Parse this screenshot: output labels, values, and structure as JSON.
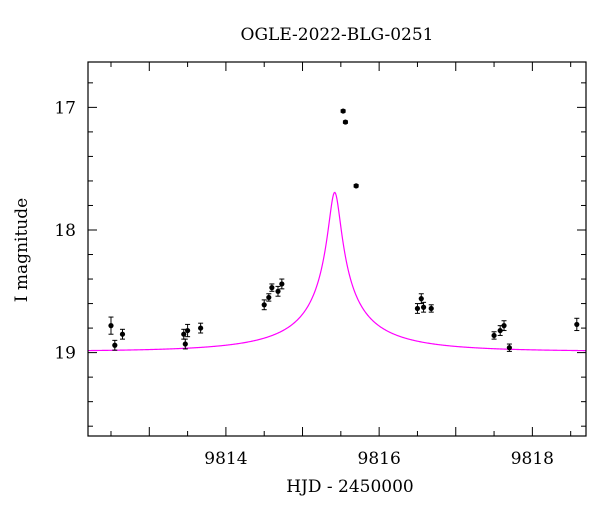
{
  "chart_data": {
    "type": "scatter",
    "title": "OGLE-2022-BLG-0251",
    "xlabel": "HJD - 2450000",
    "ylabel": "I magnitude",
    "xlim": [
      9812.2,
      9818.7
    ],
    "ylim": [
      19.68,
      16.63
    ],
    "y_inverted": true,
    "x_ticks": [
      9814,
      9816,
      9818
    ],
    "y_ticks": [
      17,
      18,
      19
    ],
    "grid": false,
    "colors": {
      "model": "#ff00ff",
      "points": "#000000",
      "axes": "#000000"
    },
    "series": [
      {
        "type": "scatter_errorbar",
        "points": [
          {
            "x": 9812.5,
            "y": 18.78,
            "err": 0.07
          },
          {
            "x": 9812.55,
            "y": 18.94,
            "err": 0.04
          },
          {
            "x": 9812.65,
            "y": 18.85,
            "err": 0.04
          },
          {
            "x": 9813.45,
            "y": 18.85,
            "err": 0.04
          },
          {
            "x": 9813.47,
            "y": 18.93,
            "err": 0.04
          },
          {
            "x": 9813.5,
            "y": 18.82,
            "err": 0.05
          },
          {
            "x": 9813.67,
            "y": 18.8,
            "err": 0.04
          },
          {
            "x": 9814.5,
            "y": 18.61,
            "err": 0.04
          },
          {
            "x": 9814.56,
            "y": 18.55,
            "err": 0.03
          },
          {
            "x": 9814.6,
            "y": 18.47,
            "err": 0.03
          },
          {
            "x": 9814.68,
            "y": 18.5,
            "err": 0.04
          },
          {
            "x": 9814.73,
            "y": 18.44,
            "err": 0.04
          },
          {
            "x": 9815.53,
            "y": 17.03,
            "err": 0.01
          },
          {
            "x": 9815.56,
            "y": 17.12,
            "err": 0.01
          },
          {
            "x": 9815.7,
            "y": 17.64,
            "err": 0.01
          },
          {
            "x": 9816.5,
            "y": 18.64,
            "err": 0.04
          },
          {
            "x": 9816.55,
            "y": 18.56,
            "err": 0.04
          },
          {
            "x": 9816.58,
            "y": 18.63,
            "err": 0.04
          },
          {
            "x": 9816.68,
            "y": 18.64,
            "err": 0.03
          },
          {
            "x": 9817.5,
            "y": 18.86,
            "err": 0.03
          },
          {
            "x": 9817.58,
            "y": 18.82,
            "err": 0.04
          },
          {
            "x": 9817.63,
            "y": 18.78,
            "err": 0.04
          },
          {
            "x": 9817.7,
            "y": 18.96,
            "err": 0.03
          },
          {
            "x": 9818.58,
            "y": 18.77,
            "err": 0.05
          }
        ]
      },
      {
        "type": "model_curve",
        "t0": 9815.42,
        "u0": 0.05,
        "tE": 1.52,
        "baseline_mag": 18.99,
        "blend_fraction": 0.121
      }
    ]
  }
}
